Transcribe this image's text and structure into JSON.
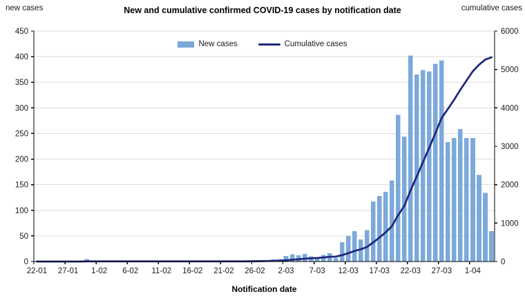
{
  "header": {
    "title": "New and cumulative confirmed COVID-19 cases by notification date",
    "left_unit": "new cases",
    "right_unit": "cumulative cases"
  },
  "legend": {
    "new_cases_label": "New cases",
    "cumulative_label": "Cumulative cases"
  },
  "axes": {
    "x_title": "Notification date",
    "left_ticks": [
      0,
      50,
      100,
      150,
      200,
      250,
      300,
      350,
      400,
      450
    ],
    "right_ticks": [
      0,
      1000,
      2000,
      3000,
      4000,
      5000,
      6000
    ],
    "x_tick_labels": [
      "22-01",
      "27-01",
      "1-02",
      "6-02",
      "11-02",
      "16-02",
      "21-02",
      "26-02",
      "2-03",
      "7-03",
      "12-03",
      "17-03",
      "22-03",
      "27-03",
      "1-04"
    ],
    "x_tick_every": 5
  },
  "colors": {
    "bar": "#7CA9DA",
    "line": "#20287D",
    "grid": "#DBDBDB",
    "axis": "#000000",
    "text": "#1a1a1a"
  },
  "chart_data": {
    "type": "combo",
    "title": "New and cumulative confirmed COVID-19 cases by notification date",
    "xlabel": "Notification date",
    "legend_position": "top-center",
    "grid": "horizontal",
    "categories": [
      "22-01",
      "23-01",
      "24-01",
      "25-01",
      "26-01",
      "27-01",
      "28-01",
      "29-01",
      "30-01",
      "31-01",
      "1-02",
      "2-02",
      "3-02",
      "4-02",
      "5-02",
      "6-02",
      "7-02",
      "8-02",
      "9-02",
      "10-02",
      "11-02",
      "12-02",
      "13-02",
      "14-02",
      "15-02",
      "16-02",
      "17-02",
      "18-02",
      "19-02",
      "20-02",
      "21-02",
      "22-02",
      "23-02",
      "24-02",
      "25-02",
      "26-02",
      "27-02",
      "28-02",
      "29-02",
      "1-03",
      "2-03",
      "3-03",
      "4-03",
      "5-03",
      "6-03",
      "7-03",
      "8-03",
      "9-03",
      "10-03",
      "11-03",
      "12-03",
      "13-03",
      "14-03",
      "15-03",
      "16-03",
      "17-03",
      "18-03",
      "19-03",
      "20-03",
      "21-03",
      "22-03",
      "23-03",
      "24-03",
      "25-03",
      "26-03",
      "27-03",
      "28-03",
      "29-03",
      "30-03",
      "31-03",
      "1-04",
      "2-04",
      "3-04",
      "4-04"
    ],
    "series": [
      {
        "name": "New cases",
        "type": "bar",
        "axis": "left",
        "values": [
          0,
          0,
          0,
          0,
          0,
          0,
          0,
          0,
          5,
          0,
          0,
          0,
          0,
          0,
          0,
          0,
          0,
          0,
          0,
          0,
          0,
          0,
          0,
          0,
          0,
          0,
          0,
          0,
          0,
          0,
          0,
          0,
          0,
          0,
          1,
          2,
          2,
          3,
          4,
          5,
          11,
          14,
          12,
          15,
          10,
          8,
          13,
          16,
          7,
          38,
          50,
          59,
          43,
          61,
          117,
          128,
          136,
          158,
          286,
          244,
          402,
          365,
          374,
          371,
          386,
          393,
          233,
          241,
          259,
          241,
          241,
          169,
          134,
          59
        ]
      },
      {
        "name": "Cumulative cases",
        "type": "line",
        "axis": "right",
        "values": [
          0,
          0,
          0,
          0,
          0,
          0,
          0,
          0,
          5,
          5,
          5,
          5,
          5,
          5,
          5,
          5,
          5,
          5,
          5,
          5,
          5,
          5,
          5,
          5,
          5,
          5,
          5,
          5,
          5,
          5,
          5,
          5,
          5,
          5,
          6,
          8,
          10,
          13,
          17,
          22,
          33,
          47,
          59,
          74,
          84,
          92,
          105,
          121,
          128,
          166,
          216,
          275,
          318,
          379,
          496,
          624,
          760,
          918,
          1204,
          1448,
          1850,
          2215,
          2589,
          2960,
          3346,
          3739,
          3972,
          4213,
          4472,
          4713,
          4954,
          5123,
          5257,
          5316
        ]
      }
    ],
    "left_axis": {
      "label": "new cases",
      "range": [
        0,
        450
      ],
      "tick_step": 50
    },
    "right_axis": {
      "label": "cumulative cases",
      "range": [
        0,
        6000
      ],
      "tick_step": 1000
    }
  }
}
